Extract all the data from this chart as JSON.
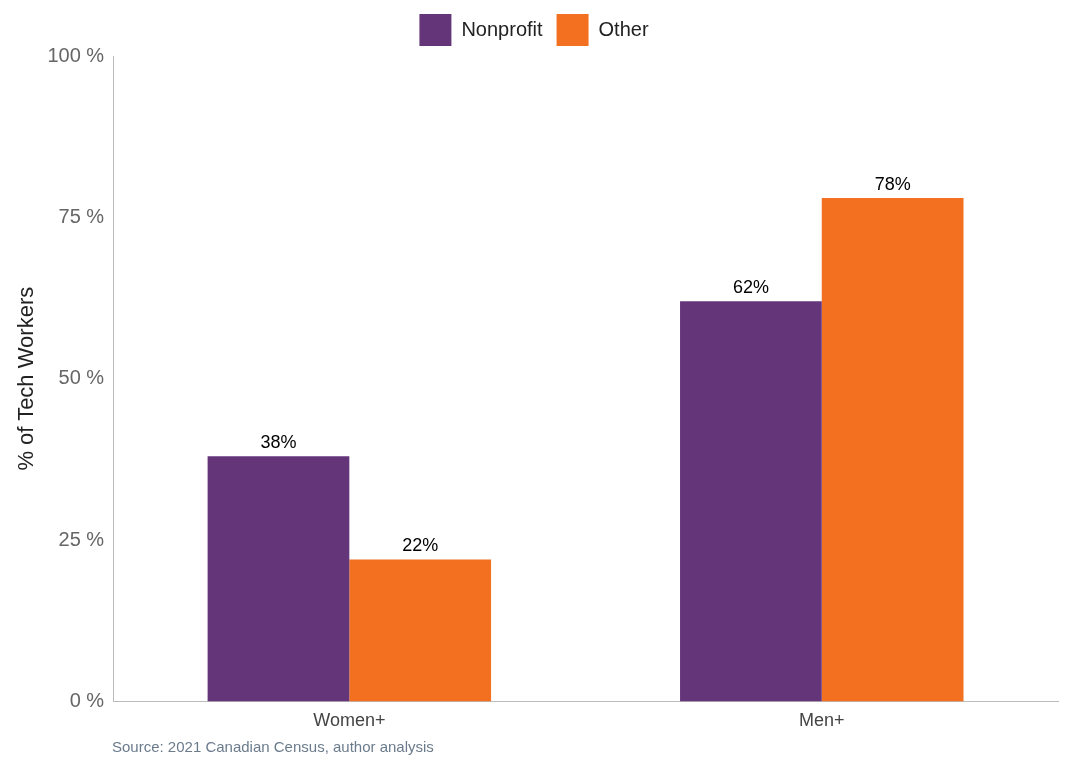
{
  "chart_data": {
    "type": "bar",
    "categories": [
      "Women+",
      "Men+"
    ],
    "series": [
      {
        "name": "Nonprofit",
        "color": "#65357a",
        "values": [
          38,
          62
        ],
        "value_labels": [
          "38%",
          "62%"
        ]
      },
      {
        "name": "Other",
        "color": "#f37021",
        "values": [
          22,
          78
        ],
        "value_labels": [
          "22%",
          "78%"
        ]
      }
    ],
    "ylabel": "% of Tech Workers",
    "ylim": [
      0,
      100
    ],
    "yticks": [
      {
        "value": 0,
        "label": "0 %"
      },
      {
        "value": 25,
        "label": "25 %"
      },
      {
        "value": 50,
        "label": "50 %"
      },
      {
        "value": 75,
        "label": "75 %"
      },
      {
        "value": 100,
        "label": "100 %"
      }
    ],
    "grid": false,
    "legend": "top",
    "annotations": [
      "Source: 2021 Canadian Census, author analysis"
    ]
  }
}
